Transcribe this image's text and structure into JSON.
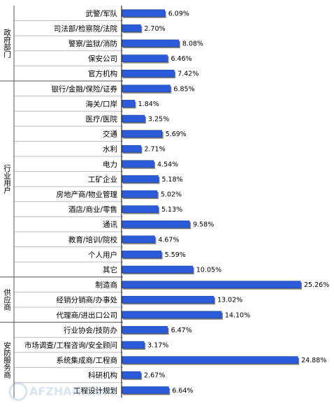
{
  "chart_data": {
    "type": "bar",
    "orientation": "horizontal",
    "groups": [
      {
        "name": "政府部门",
        "items": [
          {
            "label": "武警/军队",
            "value": 6.09,
            "text": "6.09%"
          },
          {
            "label": "司法部/检察院/法院",
            "value": 2.7,
            "text": "2.70%"
          },
          {
            "label": "警察/监狱/消防",
            "value": 8.08,
            "text": "8.08%"
          },
          {
            "label": "保安公司",
            "value": 6.46,
            "text": "6.46%"
          },
          {
            "label": "官方机构",
            "value": 7.42,
            "text": "7.42%"
          }
        ]
      },
      {
        "name": "行业用户",
        "items": [
          {
            "label": "银行/金融/保险/证券",
            "value": 6.85,
            "text": "6.85%"
          },
          {
            "label": "海关/口岸",
            "value": 1.84,
            "text": "1.84%"
          },
          {
            "label": "医疗/医院",
            "value": 3.25,
            "text": "3.25%"
          },
          {
            "label": "交通",
            "value": 5.69,
            "text": "5.69%"
          },
          {
            "label": "水利",
            "value": 2.71,
            "text": "2.71%"
          },
          {
            "label": "电力",
            "value": 4.54,
            "text": "4.54%"
          },
          {
            "label": "工矿企业",
            "value": 5.18,
            "text": "5.18%"
          },
          {
            "label": "房地产商/物业管理",
            "value": 5.02,
            "text": "5.02%"
          },
          {
            "label": "酒店/商业/零售",
            "value": 5.13,
            "text": "5.13%"
          },
          {
            "label": "通讯",
            "value": 9.58,
            "text": "9.58%"
          },
          {
            "label": "教育/培训/院校",
            "value": 4.67,
            "text": "4.67%"
          },
          {
            "label": "个人用户",
            "value": 5.59,
            "text": "5.59%"
          },
          {
            "label": "其它",
            "value": 10.05,
            "text": "10.05%"
          }
        ]
      },
      {
        "name": "供应商",
        "items": [
          {
            "label": "制造商",
            "value": 25.26,
            "text": "25.26%"
          },
          {
            "label": "经销分销商/办事处",
            "value": 13.02,
            "text": "13.02%"
          },
          {
            "label": "代理商/进出口公司",
            "value": 14.1,
            "text": "14.10%"
          }
        ]
      },
      {
        "name": "安防服务商",
        "items": [
          {
            "label": "行业协会/技防办",
            "value": 6.47,
            "text": "6.47%"
          },
          {
            "label": "市场调查/工程咨询/安全顾问",
            "value": 3.17,
            "text": "3.17%"
          },
          {
            "label": "系统集成商/工程商",
            "value": 24.88,
            "text": "24.88%"
          },
          {
            "label": "科研机构",
            "value": 2.67,
            "text": "2.67%"
          },
          {
            "label": "工程设计规划",
            "value": 6.64,
            "text": "6.64%"
          }
        ]
      }
    ],
    "xlim": [
      0,
      25.26
    ],
    "grid": false,
    "legend": "none",
    "colors": {
      "bar": "#2b5bd9",
      "bar_edge": "#1a3c9e",
      "shadow": "#7f7f7f",
      "row_line": "#bdbdbd",
      "axis": "#000000",
      "text": "#000000"
    }
  },
  "watermark": {
    "text": "AFZHAN.COM"
  }
}
